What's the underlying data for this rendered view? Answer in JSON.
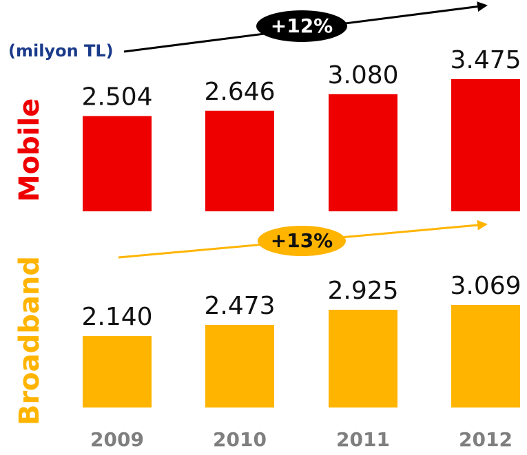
{
  "unit_label": "(milyon TL)",
  "chart_data": [
    {
      "type": "bar",
      "name": "Mobile",
      "growth": "+12%",
      "color": "#ee0000",
      "values": [
        2504,
        2646,
        3080,
        3475
      ],
      "value_labels": [
        "2.504",
        "2.646",
        "3.080",
        "3.475"
      ]
    },
    {
      "type": "bar",
      "name": "Broadband",
      "growth": "+13%",
      "color": "#ffb400",
      "categories": [
        "2009",
        "2010",
        "2011",
        "2012"
      ],
      "values": [
        2140,
        2473,
        2925,
        3069
      ],
      "value_labels": [
        "2.140",
        "2.473",
        "2.925",
        "3.069"
      ]
    }
  ]
}
